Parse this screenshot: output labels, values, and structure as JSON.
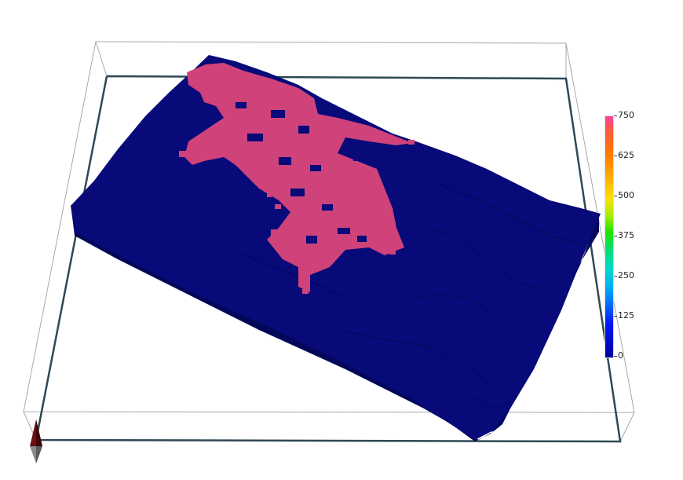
{
  "colorbar": {
    "ticks": [
      {
        "label": "750"
      },
      {
        "label": "625"
      },
      {
        "label": "500"
      },
      {
        "label": "375"
      },
      {
        "label": "250"
      },
      {
        "label": "125"
      },
      {
        "label": "0"
      }
    ]
  },
  "colors": {
    "block_fill": "#070a78",
    "block_side": "#02064e",
    "highlight": "#d0427a",
    "frame_line": "#a0a0a0",
    "frame_dark": "#2f4854"
  }
}
